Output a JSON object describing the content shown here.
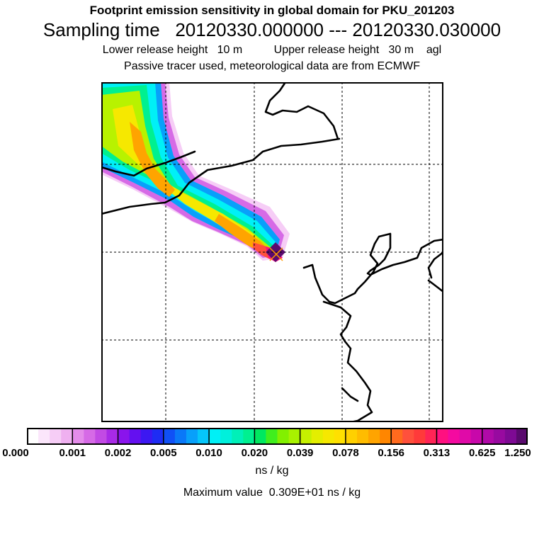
{
  "titles": {
    "line1": "Footprint emission sensitivity in global domain for PKU_201203",
    "line2": "Sampling time   20120330.000000 --- 20120330.030000",
    "line3": "Lower release height   10 m          Upper release height   30 m    agl",
    "line4": "Passive tracer used, meteorological data are from ECMWF"
  },
  "colorbar": {
    "tick_labels": [
      "0.000",
      "0.001",
      "0.002",
      "0.005",
      "0.010",
      "0.020",
      "0.039",
      "0.078",
      "0.156",
      "0.313",
      "0.625",
      "1.250"
    ],
    "colors": [
      "#ffffff",
      "#fbe6fb",
      "#f6cdf6",
      "#efb0f0",
      "#e48cea",
      "#d66ae6",
      "#c24ae4",
      "#a82ae6",
      "#8a14ec",
      "#6410f0",
      "#3c18f2",
      "#1e2cf4",
      "#1050f6",
      "#0a78f8",
      "#08a0fa",
      "#06c6fa",
      "#00f0f6",
      "#00f0dc",
      "#00f0b8",
      "#00f090",
      "#00e860",
      "#40ee1e",
      "#82f000",
      "#a8f200",
      "#c6f000",
      "#e4ee00",
      "#f6e800",
      "#ffe000",
      "#ffd000",
      "#ffbc00",
      "#ffa400",
      "#ff8600",
      "#ff6a1e",
      "#ff503c",
      "#ff3a3a",
      "#ff2456",
      "#ff1080",
      "#f40aa0",
      "#e00aa8",
      "#c808aa",
      "#b00aa8",
      "#980aa0",
      "#7e0a94",
      "#5a0a6e"
    ],
    "unit": "ns / kg"
  },
  "maximum": "Maximum value  0.309E+01 ns / kg"
}
